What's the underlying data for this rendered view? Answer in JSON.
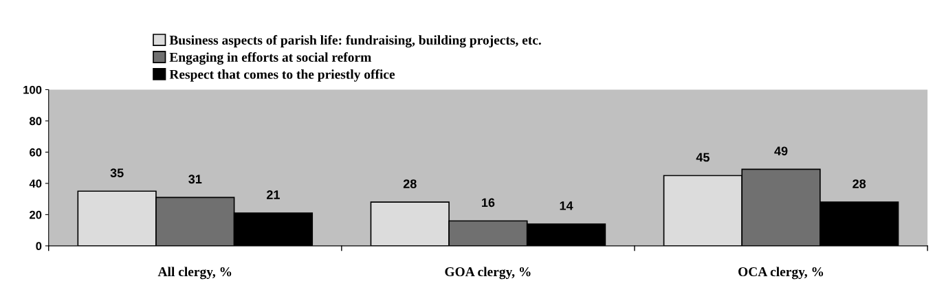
{
  "chart_data": {
    "type": "bar",
    "categories": [
      "All clergy, %",
      "GOA clergy, %",
      "OCA clergy, %"
    ],
    "series": [
      {
        "name": "Business aspects of parish life: fundraising, building projects, etc.",
        "color": "#dcdcdc",
        "values": [
          35,
          28,
          45
        ]
      },
      {
        "name": "Engaging in efforts at social reform",
        "color": "#707070",
        "values": [
          31,
          16,
          49
        ]
      },
      {
        "name": "Respect that comes to the priestly office",
        "color": "#000000",
        "values": [
          21,
          14,
          28
        ]
      }
    ],
    "ylim": [
      0,
      100
    ],
    "yticks": [
      0,
      20,
      40,
      60,
      80,
      100
    ],
    "data_labels": true,
    "grid": false,
    "legend": "top"
  }
}
